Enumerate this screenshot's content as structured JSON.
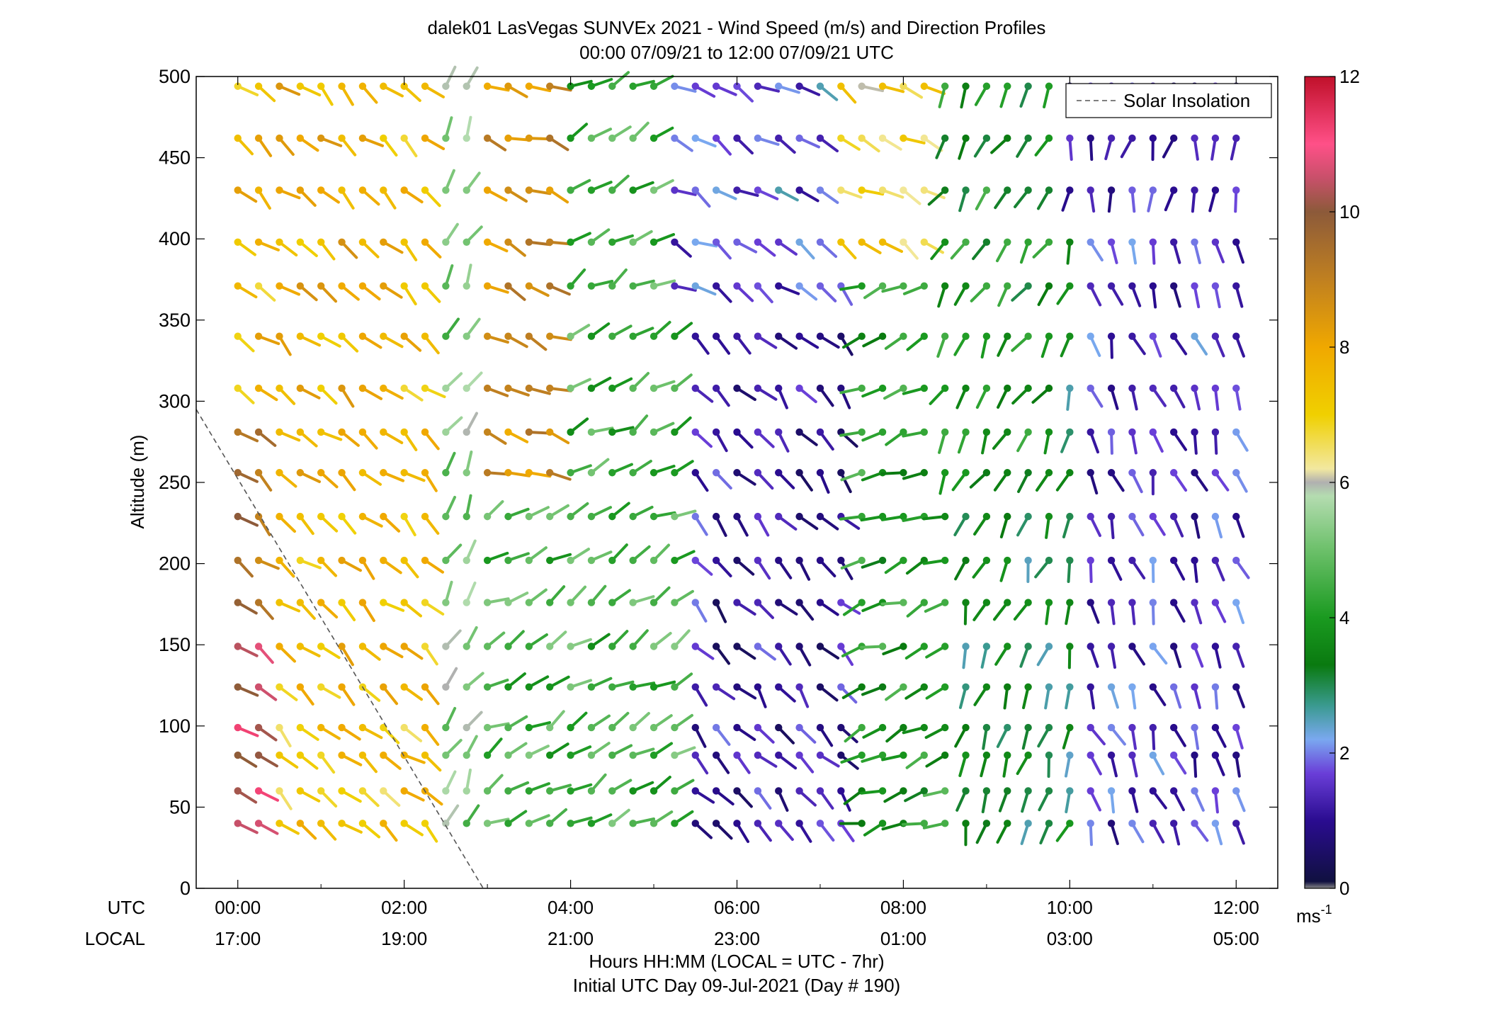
{
  "chart_data": {
    "type": "wind_barb_profile",
    "title_line1": "dalek01 LasVegas SUNVEx 2021 - Wind Speed (m/s) and Direction Profiles",
    "title_line2": "00:00 07/09/21 to 12:00 07/09/21  UTC",
    "ylabel": "Altitude (m)",
    "xlabel_line1": "Hours HH:MM  (LOCAL = UTC - 7hr)",
    "xlabel_line2": "Initial UTC Day 09-Jul-2021 (Day # 190)",
    "utc_row_label": "UTC",
    "local_row_label": "LOCAL",
    "x_range_hours": [
      -0.5,
      12.5
    ],
    "y_range_m": [
      0,
      500
    ],
    "y_ticks": [
      0,
      50,
      100,
      150,
      200,
      250,
      300,
      350,
      400,
      450,
      500
    ],
    "x_ticks": [
      {
        "hour": 0,
        "utc": "00:00",
        "local": "17:00"
      },
      {
        "hour": 2,
        "utc": "02:00",
        "local": "19:00"
      },
      {
        "hour": 4,
        "utc": "04:00",
        "local": "21:00"
      },
      {
        "hour": 6,
        "utc": "06:00",
        "local": "23:00"
      },
      {
        "hour": 8,
        "utc": "08:00",
        "local": "01:00"
      },
      {
        "hour": 10,
        "utc": "10:00",
        "local": "03:00"
      },
      {
        "hour": 12,
        "utc": "12:00",
        "local": "05:00"
      }
    ],
    "altitudes_m": [
      40,
      60,
      82,
      99,
      124,
      149,
      176,
      202,
      229,
      256,
      281,
      308,
      340,
      371,
      398,
      430,
      462,
      494
    ],
    "time_step_hours": 0.25,
    "time_start_hour": 0,
    "time_count": 49,
    "colorbar": {
      "min": 0,
      "max": 12,
      "ticks": [
        0,
        2,
        4,
        6,
        8,
        10,
        12
      ],
      "unit": "ms",
      "unit_exponent": "-1",
      "stops": [
        {
          "v": 0.0,
          "c": "#888888"
        },
        {
          "v": 0.1,
          "c": "#101040"
        },
        {
          "v": 1.0,
          "c": "#2a0c90"
        },
        {
          "v": 1.7,
          "c": "#6a3ed8"
        },
        {
          "v": 2.2,
          "c": "#7aa8f0"
        },
        {
          "v": 2.7,
          "c": "#3a9a90"
        },
        {
          "v": 3.3,
          "c": "#0a7a10"
        },
        {
          "v": 4.0,
          "c": "#1a9a20"
        },
        {
          "v": 5.0,
          "c": "#6cc06a"
        },
        {
          "v": 5.8,
          "c": "#b4dcb0"
        },
        {
          "v": 6.0,
          "c": "#b0b0b0"
        },
        {
          "v": 6.2,
          "c": "#f2e8a0"
        },
        {
          "v": 7.0,
          "c": "#f0d000"
        },
        {
          "v": 8.0,
          "c": "#f0a800"
        },
        {
          "v": 9.0,
          "c": "#c08020"
        },
        {
          "v": 10.0,
          "c": "#8c5a3a"
        },
        {
          "v": 10.5,
          "c": "#c8506a"
        },
        {
          "v": 11.0,
          "c": "#ff5088"
        },
        {
          "v": 12.0,
          "c": "#c0102a"
        }
      ]
    },
    "legend": {
      "label": "Solar Insolation",
      "placement": "top-right",
      "line_style": "dashed",
      "color": "#555555"
    },
    "solar_insolation_line": [
      {
        "hour": -0.5,
        "alt": 295
      },
      {
        "hour": 2.95,
        "alt": 0
      }
    ],
    "wind_regimes_approx": [
      {
        "hours": [
          0,
          2.5
        ],
        "speed_ms": 7.5,
        "direction_deg": 130,
        "note_low_levels_0h": "10-11 m/s"
      },
      {
        "hours": [
          2.5,
          5.25
        ],
        "speed_ms": 4.5,
        "direction_deg": 60
      },
      {
        "hours": [
          5.25,
          7.25
        ],
        "speed_ms": 1.2,
        "direction_deg": 140
      },
      {
        "hours": [
          7.25,
          8.5
        ],
        "speed_ms": 4.0,
        "direction_deg": 250
      },
      {
        "hours": [
          8.5,
          10
        ],
        "speed_ms": 3.2,
        "direction_deg": 200
      },
      {
        "hours": [
          10,
          12
        ],
        "speed_ms": 1.5,
        "direction_deg": 160
      }
    ]
  }
}
